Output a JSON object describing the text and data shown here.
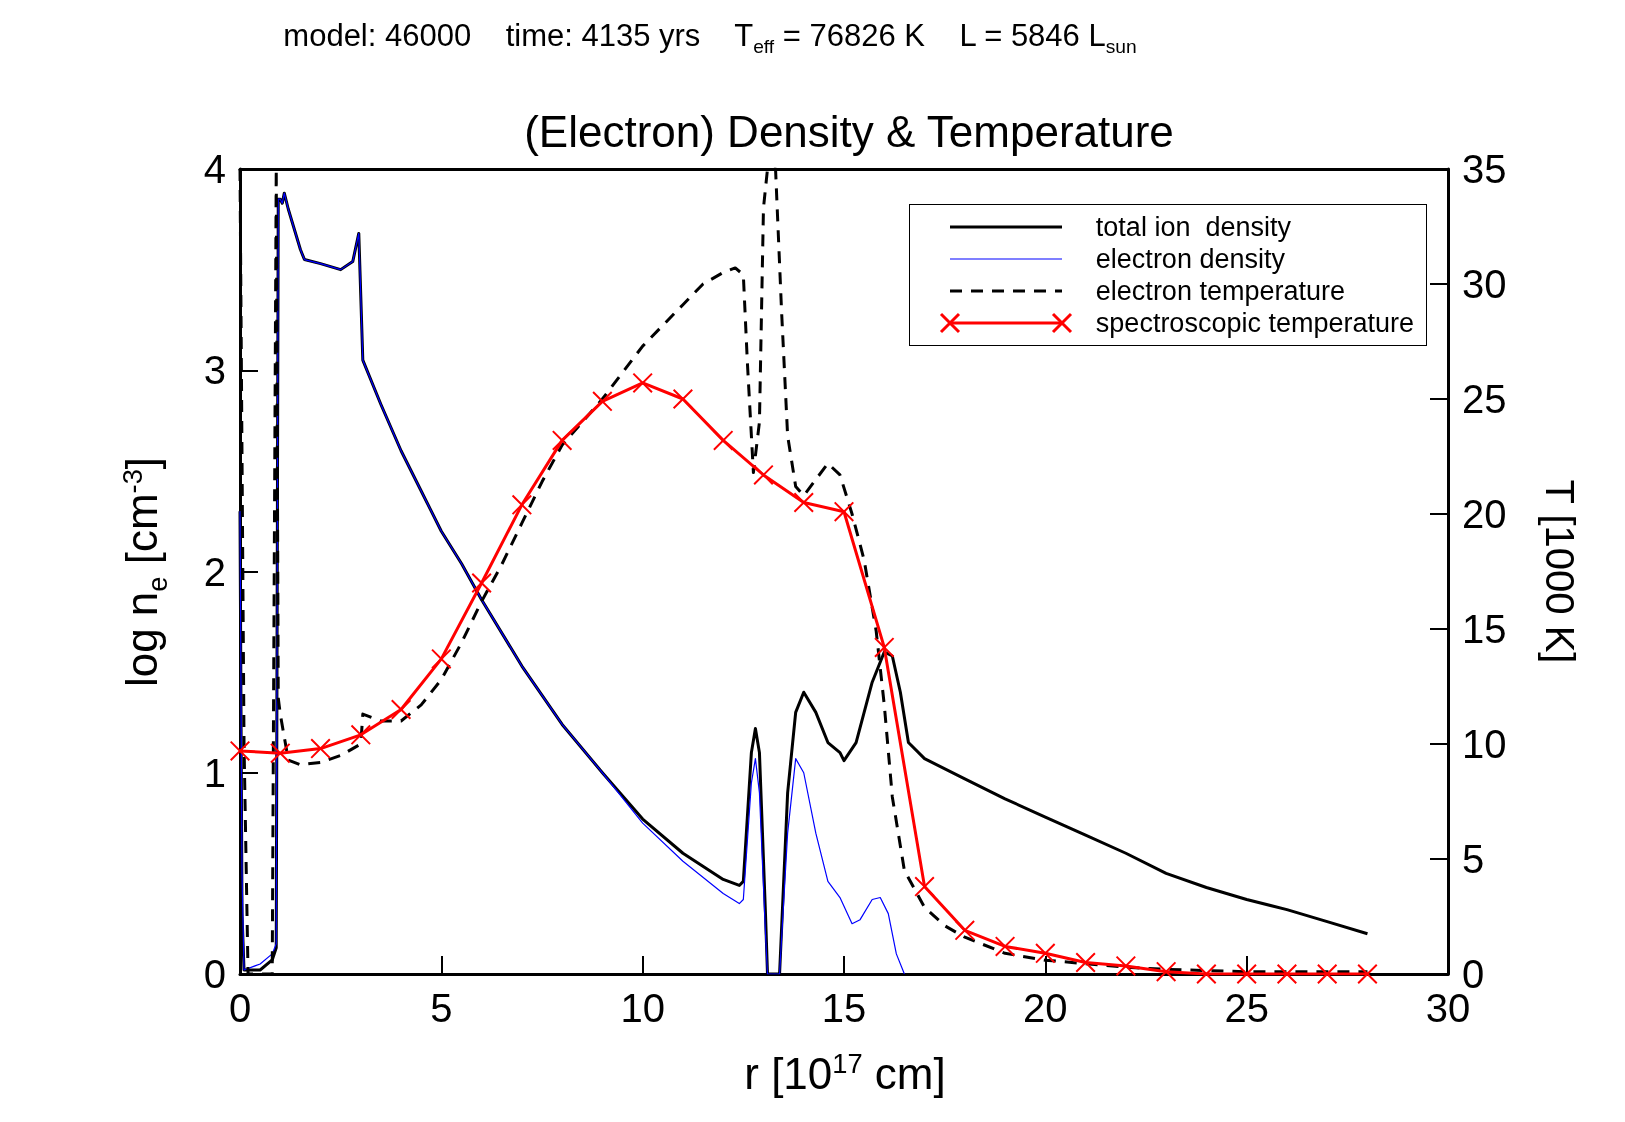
{
  "chart_data": {
    "type": "line",
    "title": "(Electron) Density & Temperature",
    "subtitle": "model: 46000    time: 4135 yrs    T$_{eff}$ = 76826 K    L = 5846 L$_{sun}$",
    "xlabel": "r [10$^{17}$ cm]",
    "ylabel": "log n$_{e}$ [cm$^{-3}$]",
    "y2label": "T [1000 K]",
    "xlim": [
      0,
      30
    ],
    "xticks": [
      0,
      5,
      10,
      15,
      20,
      25,
      30
    ],
    "ylim": [
      0,
      4
    ],
    "yticks": [
      0,
      1,
      2,
      3,
      4
    ],
    "y2lim": [
      0,
      35
    ],
    "y2ticks": [
      0,
      5,
      10,
      15,
      20,
      25,
      30,
      35
    ],
    "grid": false,
    "legend": "top right",
    "series": [
      {
        "name": "total ion  density",
        "color": "#000000",
        "line_style": "solid",
        "marker": "none",
        "x": [
          0,
          0.05,
          0.1,
          0.5,
          0.8,
          0.9,
          0.95,
          1.0,
          1.05,
          1.1,
          1.2,
          1.5,
          1.6,
          2,
          2.5,
          2.8,
          2.95,
          3.05,
          3.5,
          4,
          4.5,
          5,
          5.5,
          6,
          7,
          8,
          9,
          10,
          11,
          12,
          12.4,
          12.5,
          12.7,
          12.8,
          12.9,
          13.05,
          13.1,
          13.4,
          13.6,
          13.8,
          14.0,
          14.3,
          14.6,
          14.9,
          15.0,
          15.3,
          15.7,
          16.0,
          16.2,
          16.4,
          16.6,
          17,
          18,
          19,
          20,
          21,
          22,
          23,
          24,
          25,
          26,
          27,
          28
        ],
        "values": [
          2.3,
          0.3,
          0.02,
          0.02,
          0.07,
          0.13,
          3.85,
          3.85,
          3.83,
          3.88,
          3.8,
          3.6,
          3.55,
          3.53,
          3.5,
          3.54,
          3.68,
          3.05,
          2.83,
          2.6,
          2.4,
          2.2,
          2.04,
          1.86,
          1.53,
          1.24,
          1.0,
          0.77,
          0.6,
          0.47,
          0.44,
          0.46,
          1.1,
          1.22,
          1.1,
          0.3,
          0,
          0,
          0.9,
          1.3,
          1.4,
          1.3,
          1.15,
          1.1,
          1.06,
          1.15,
          1.45,
          1.6,
          1.58,
          1.4,
          1.15,
          1.07,
          0.97,
          0.87,
          0.78,
          0.69,
          0.6,
          0.5,
          0.43,
          0.37,
          0.32,
          0.26,
          0.2
        ]
      },
      {
        "name": "electron density",
        "color": "#0000ff",
        "line_style": "solid",
        "marker": "none",
        "x": [
          0,
          0.05,
          0.1,
          0.5,
          0.8,
          0.9,
          0.95,
          1.0,
          1.05,
          1.1,
          1.2,
          1.5,
          1.6,
          2,
          2.5,
          2.8,
          2.95,
          3.05,
          3.5,
          4,
          4.5,
          5,
          5.5,
          6,
          7,
          8,
          9,
          10,
          11,
          12,
          12.4,
          12.5,
          12.7,
          12.8,
          12.9,
          13.05,
          13.1,
          13.4,
          13.6,
          13.8,
          14.0,
          14.3,
          14.6,
          14.9,
          15.2,
          15.4,
          15.7,
          15.9,
          16.1,
          16.3,
          16.5
        ],
        "values": [
          2.3,
          0.5,
          0.02,
          0.05,
          0.1,
          0.15,
          3.85,
          3.85,
          3.83,
          3.88,
          3.8,
          3.6,
          3.55,
          3.53,
          3.5,
          3.54,
          3.68,
          3.05,
          2.83,
          2.6,
          2.4,
          2.2,
          2.04,
          1.86,
          1.53,
          1.24,
          1.0,
          0.75,
          0.56,
          0.4,
          0.35,
          0.37,
          0.95,
          1.07,
          0.9,
          0.2,
          0,
          0,
          0.7,
          1.07,
          1.0,
          0.7,
          0.46,
          0.38,
          0.25,
          0.27,
          0.37,
          0.38,
          0.3,
          0.1,
          0
        ]
      },
      {
        "name": "electron temperature",
        "color": "#000000",
        "line_style": "dashed",
        "marker": "none",
        "axis": "y2",
        "x": [
          0,
          0.1,
          0.2,
          0.8,
          0.9,
          0.95,
          1.0,
          1.2,
          1.5,
          2,
          2.5,
          3,
          3.05,
          3.5,
          4,
          4.5,
          5,
          5.5,
          6,
          6.5,
          7,
          7.5,
          8,
          9,
          10,
          11,
          11.5,
          12,
          12.3,
          12.5,
          12.6,
          12.75,
          12.9,
          13.0,
          13.1,
          13.3,
          13.45,
          13.6,
          13.8,
          14.0,
          14.3,
          14.6,
          14.9,
          15.2,
          15.5,
          15.8,
          16.0,
          16.2,
          16.5,
          17,
          17.5,
          18,
          19,
          20,
          21,
          22,
          23,
          25,
          28
        ],
        "values": [
          35,
          10,
          0,
          0,
          35,
          12,
          11.3,
          9.3,
          9.1,
          9.2,
          9.5,
          10.0,
          11.3,
          11.0,
          11.0,
          11.7,
          12.8,
          14.4,
          16.2,
          17.8,
          19.6,
          21.4,
          23.0,
          25.0,
          27.3,
          29.1,
          30.0,
          30.5,
          30.7,
          30.4,
          26.6,
          21.8,
          24,
          33.3,
          35,
          35,
          28.8,
          23.4,
          21.2,
          20.8,
          21.5,
          22.2,
          21.7,
          20.0,
          18.0,
          14.9,
          11.7,
          7.7,
          4.5,
          2.9,
          2.1,
          1.6,
          0.9,
          0.6,
          0.45,
          0.3,
          0.2,
          0.1,
          0.1
        ]
      },
      {
        "name": "spectroscopic temperature",
        "color": "#ff0000",
        "line_style": "solid",
        "marker": "cross",
        "axis": "y2",
        "x": [
          0,
          1,
          2,
          3,
          4,
          5,
          6,
          7,
          8,
          9,
          10,
          11,
          12,
          13,
          14,
          15,
          16,
          17,
          18,
          19,
          20,
          21,
          22,
          23,
          24,
          25,
          26,
          27,
          28
        ],
        "values": [
          9.7,
          9.6,
          9.8,
          10.4,
          11.5,
          13.7,
          17.0,
          20.4,
          23.2,
          24.9,
          25.7,
          25.0,
          23.2,
          21.7,
          20.5,
          20.1,
          14.2,
          3.8,
          1.9,
          1.2,
          0.9,
          0.5,
          0.35,
          0.1,
          0,
          0,
          0,
          0,
          0
        ]
      }
    ]
  }
}
